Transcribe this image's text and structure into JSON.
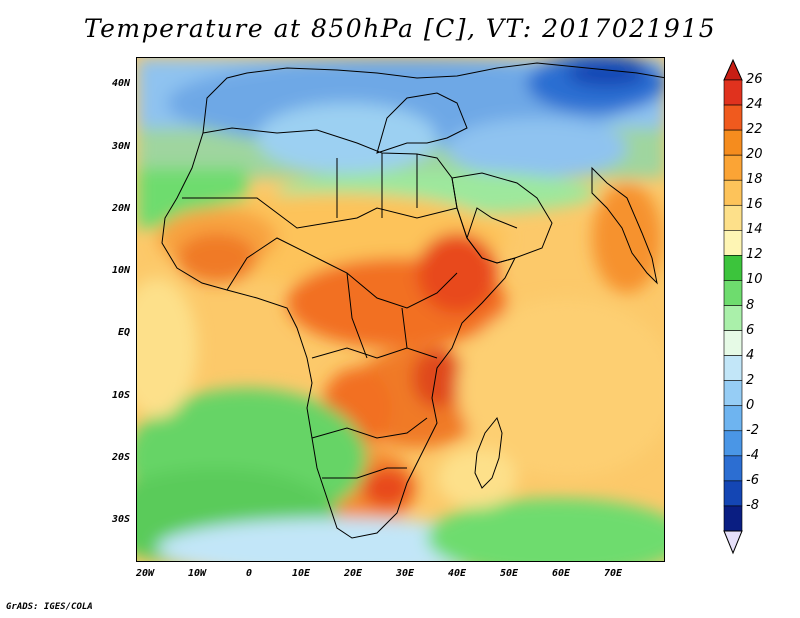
{
  "title": "Temperature at 850hPa [C], VT: 2017021915",
  "footer": "GrADS: IGES/COLA",
  "lat_labels": [
    "40N",
    "30N",
    "20N",
    "10N",
    "EQ",
    "10S",
    "20S",
    "30S"
  ],
  "lon_labels": [
    "20W",
    "10W",
    "0",
    "10E",
    "20E",
    "30E",
    "40E",
    "50E",
    "60E",
    "70E"
  ],
  "colorbar": {
    "labels": [
      "26",
      "24",
      "22",
      "20",
      "18",
      "16",
      "14",
      "12",
      "10",
      "8",
      "6",
      "4",
      "2",
      "0",
      "-2",
      "-4",
      "-6",
      "-8"
    ],
    "colors": [
      "#e0321e",
      "#f05a1e",
      "#f58c1e",
      "#fba435",
      "#fdc35a",
      "#fde08a",
      "#fef5b4",
      "#3cc43c",
      "#6edc6e",
      "#aaf0aa",
      "#e6fae6",
      "#c2e6f8",
      "#96cdf5",
      "#6eb4f0",
      "#4a96e6",
      "#2c6ed2",
      "#1446b4",
      "#0a1e82"
    ],
    "top_color": "#c81e14",
    "bottom_color": "#e6e0fa"
  }
}
